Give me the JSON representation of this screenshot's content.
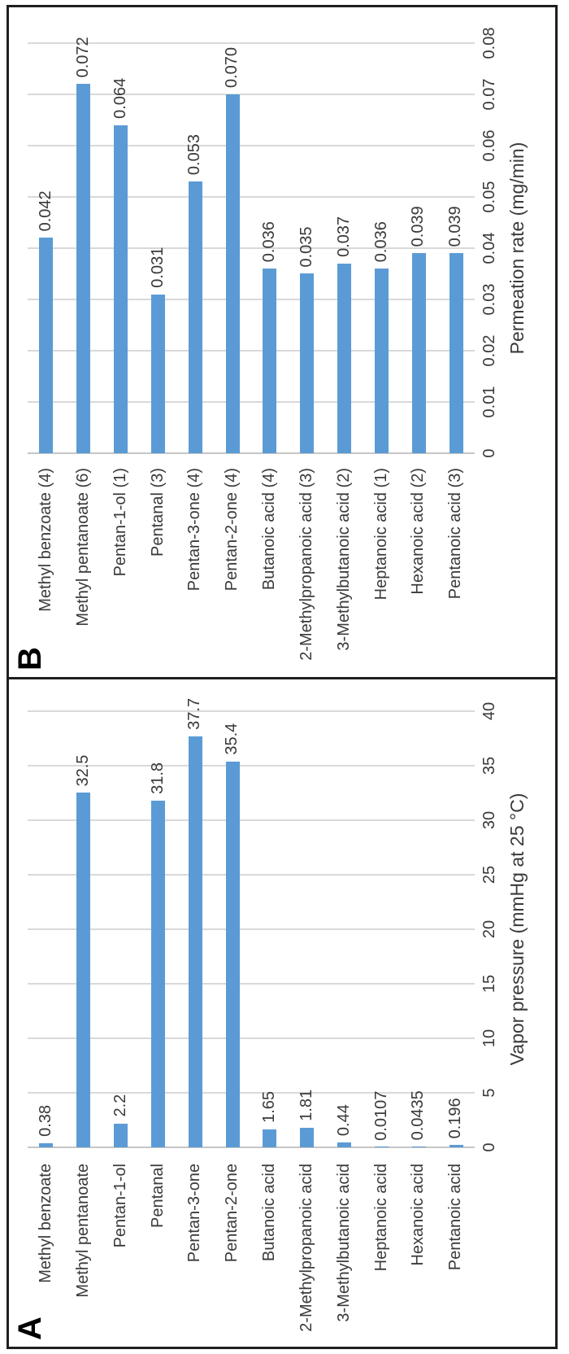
{
  "figure": {
    "panel_letters": [
      "A",
      "B"
    ],
    "bar_color": "#5B9BD5",
    "gridline_color": "#D9D9D9",
    "axis_line_color": "#C6C6C6",
    "text_color": "#3A3A3A",
    "frame_color": "#1F1F1F",
    "rotation_note": "figure rendered landscape and rotated 90deg counter-clockwise"
  },
  "chart_data": [
    {
      "type": "bar",
      "panel_label": "A",
      "orientation": "horizontal",
      "title": "",
      "xlabel": "Vapor pressure (mmHg at 25 °C)",
      "ylabel": "",
      "xlim": [
        0,
        40
      ],
      "xticks": [
        "0",
        "5",
        "10",
        "15",
        "20",
        "25",
        "30",
        "35",
        "40"
      ],
      "grid": true,
      "legend": null,
      "categories": [
        "Methyl benzoate",
        "Methyl pentanoate",
        "Pentan-1-ol",
        "Pentanal",
        "Pentan-3-one",
        "Pentan-2-one",
        "Butanoic acid",
        "2-Methylpropanoic acid",
        "3-Methylbutanoic acid",
        "Heptanoic acid",
        "Hexanoic acid",
        "Pentanoic acid"
      ],
      "values": [
        0.38,
        32.5,
        2.2,
        31.8,
        37.7,
        35.4,
        1.65,
        1.81,
        0.44,
        0.0107,
        0.0435,
        0.196
      ],
      "data_labels": [
        "0.38",
        "32.5",
        "2.2",
        "31.8",
        "37.7",
        "35.4",
        "1.65",
        "1.81",
        "0.44",
        "0.0107",
        "0.0435",
        "0.196"
      ]
    },
    {
      "type": "bar",
      "panel_label": "B",
      "orientation": "horizontal",
      "title": "",
      "xlabel": "Permeation rate (mg/min)",
      "ylabel": "",
      "xlim": [
        0,
        0.08
      ],
      "xticks": [
        "0",
        "0.01",
        "0.02",
        "0.03",
        "0.04",
        "0.05",
        "0.06",
        "0.07",
        "0.08"
      ],
      "grid": true,
      "legend": null,
      "categories": [
        "Methyl benzoate (4)",
        "Methyl pentanoate (6)",
        "Pentan-1-ol (1)",
        "Pentanal (3)",
        "Pentan-3-one (4)",
        "Pentan-2-one (4)",
        "Butanoic acid (4)",
        "2-Methylpropanoic acid (3)",
        "3-Methylbutanoic acid (2)",
        "Heptanoic acid (1)",
        "Hexanoic acid (2)",
        "Pentanoic acid (3)"
      ],
      "values": [
        0.042,
        0.072,
        0.064,
        0.031,
        0.053,
        0.07,
        0.036,
        0.035,
        0.037,
        0.036,
        0.039,
        0.039
      ],
      "data_labels": [
        "0.042",
        "0.072",
        "0.064",
        "0.031",
        "0.053",
        "0.070",
        "0.036",
        "0.035",
        "0.037",
        "0.036",
        "0.039",
        "0.039"
      ]
    }
  ]
}
